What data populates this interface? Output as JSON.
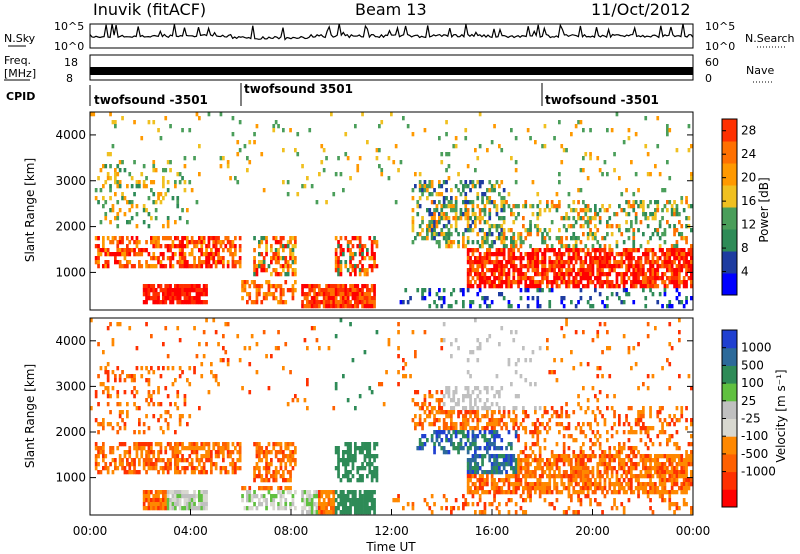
{
  "header": {
    "station": "Inuvik (fitACF)",
    "beam": "Beam 13",
    "date": "11/Oct/2012"
  },
  "nsky_panel": {
    "left_label": "N.Sky",
    "left_ticks": [
      "10^5",
      "10^0"
    ],
    "right_label": "N.Search",
    "right_ticks": [
      "10^5",
      "10^0"
    ]
  },
  "freq_panel": {
    "left_label": "Freq.",
    "unit": "[MHz]",
    "left_ticks": [
      "18",
      "8"
    ],
    "right_label": "Nave",
    "right_ticks": [
      "60",
      "0"
    ]
  },
  "cpid": {
    "label": "CPID",
    "segments": [
      {
        "start": "00:00",
        "name": "twofsound -3501"
      },
      {
        "start": "06:00",
        "name": "twofsound 3501"
      },
      {
        "start": "18:00",
        "name": "twofsound -3501"
      }
    ]
  },
  "colors": {
    "power": [
      "#0000ff",
      "#1e3ca0",
      "#2e8b57",
      "#4a9e5a",
      "#f0c020",
      "#ff9900",
      "#ff7000",
      "#ff3000",
      "#ff0000"
    ],
    "velocity": [
      "#2040d0",
      "#2c6a9a",
      "#2e8b57",
      "#60c040",
      "#c0c0c0",
      "#d8d8d0",
      "#ff8800",
      "#ff6000",
      "#ff3000",
      "#ff0000"
    ]
  },
  "chart_data": [
    {
      "type": "heatmap",
      "name": "power",
      "xlabel": "",
      "ylabel": "Slant Range [km]",
      "x_range_hours": [
        0,
        24
      ],
      "ylim": [
        180,
        4500
      ],
      "yticks": [
        "1000",
        "2000",
        "3000",
        "4000"
      ],
      "colorbar_label": "Power [dB]",
      "colorbar_ticks": [
        "4",
        "8",
        "12",
        "16",
        "20",
        "24",
        "28"
      ],
      "colorbar_range": [
        0,
        30
      ]
    },
    {
      "type": "heatmap",
      "name": "velocity",
      "xlabel": "Time UT",
      "ylabel": "Slant Range [km]",
      "x_range_hours": [
        0,
        24
      ],
      "xticks": [
        "00:00",
        "04:00",
        "08:00",
        "12:00",
        "16:00",
        "20:00",
        "00:00"
      ],
      "ylim": [
        180,
        4500
      ],
      "yticks": [
        "1000",
        "2000",
        "3000",
        "4000"
      ],
      "colorbar_label": "Velocity [m s⁻¹]",
      "colorbar_ticks": [
        "1000",
        "500",
        "100",
        "25",
        "-25",
        "-100",
        "-500",
        "-1000"
      ]
    }
  ]
}
